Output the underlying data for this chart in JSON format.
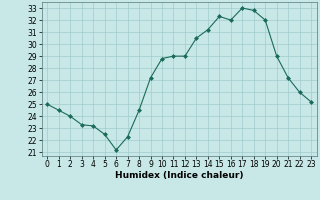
{
  "x": [
    0,
    1,
    2,
    3,
    4,
    5,
    6,
    7,
    8,
    9,
    10,
    11,
    12,
    13,
    14,
    15,
    16,
    17,
    18,
    19,
    20,
    21,
    22,
    23
  ],
  "y": [
    25.0,
    24.5,
    24.0,
    23.3,
    23.2,
    22.5,
    21.2,
    22.3,
    24.5,
    27.2,
    28.8,
    29.0,
    29.0,
    30.5,
    31.2,
    32.3,
    32.0,
    33.0,
    32.8,
    32.0,
    29.0,
    27.2,
    26.0,
    25.2
  ],
  "line_color": "#1a6b5a",
  "marker": "D",
  "marker_size": 2,
  "bg_color": "#c8e8e8",
  "grid_color": "#a0cccc",
  "xlabel": "Humidex (Indice chaleur)",
  "xlim": [
    -0.5,
    23.5
  ],
  "ylim": [
    20.7,
    33.5
  ],
  "yticks": [
    21,
    22,
    23,
    24,
    25,
    26,
    27,
    28,
    29,
    30,
    31,
    32,
    33
  ],
  "xticks": [
    0,
    1,
    2,
    3,
    4,
    5,
    6,
    7,
    8,
    9,
    10,
    11,
    12,
    13,
    14,
    15,
    16,
    17,
    18,
    19,
    20,
    21,
    22,
    23
  ],
  "tick_fontsize": 5.5,
  "label_fontsize": 6.5
}
